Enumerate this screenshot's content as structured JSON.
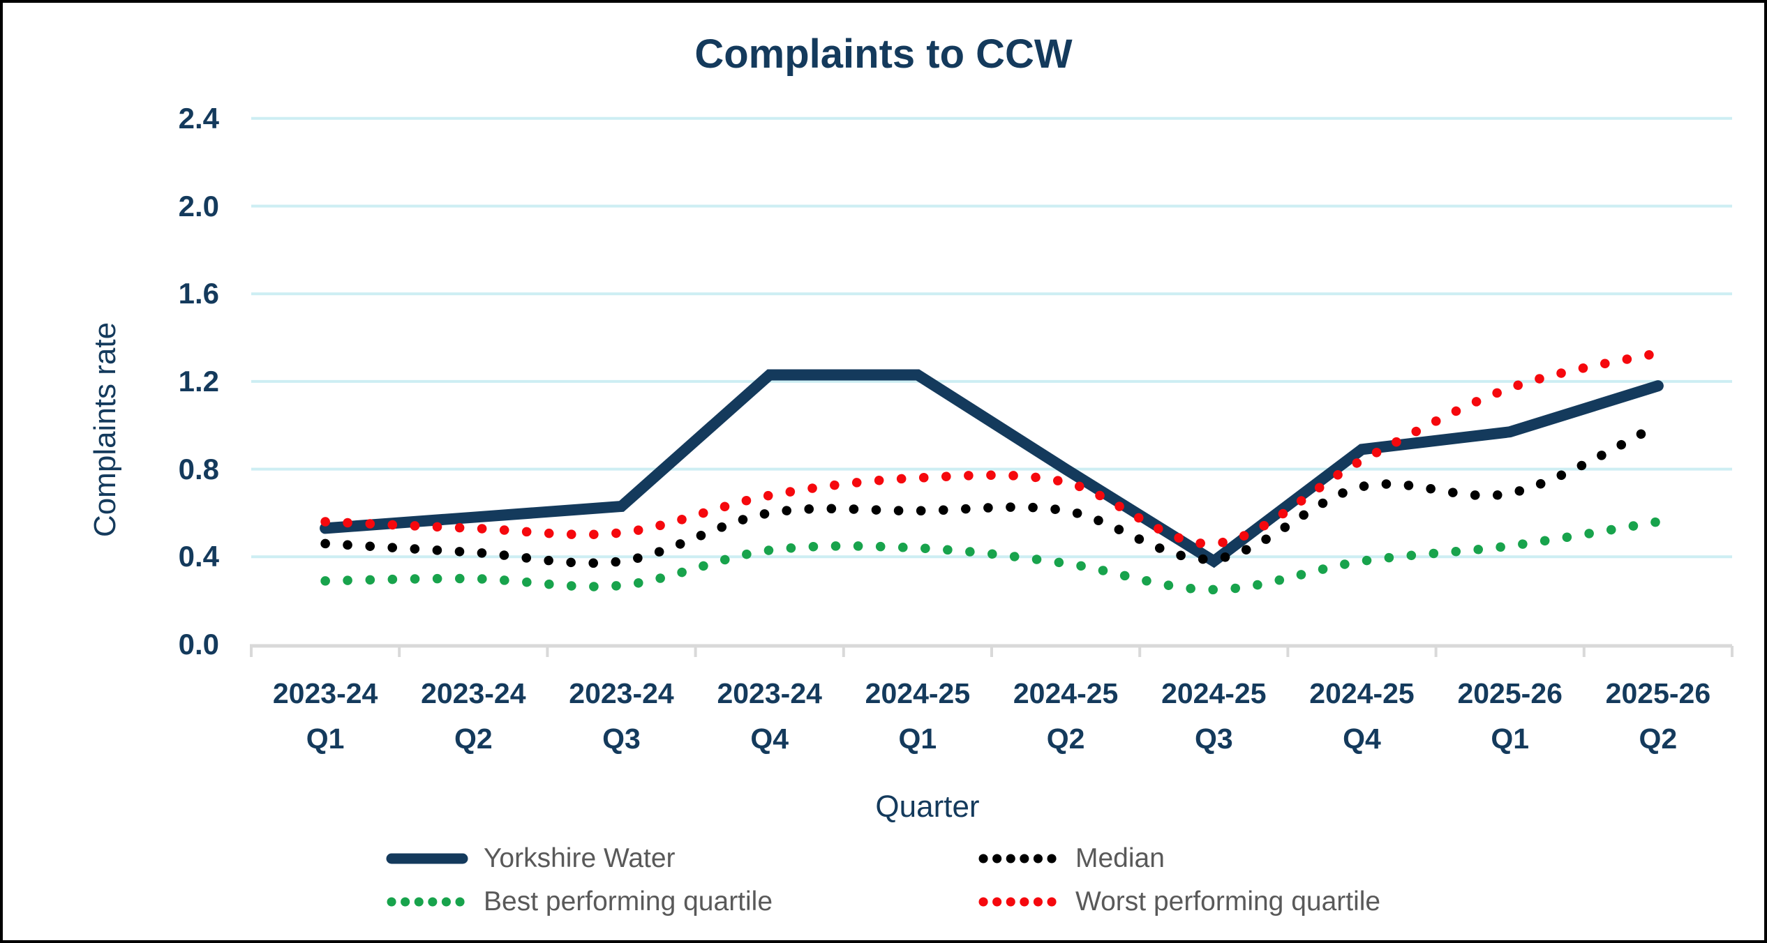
{
  "chart_data": {
    "type": "line",
    "title": "Complaints to CCW",
    "xlabel": "Quarter",
    "ylabel": "Complaints rate",
    "ylim": [
      0,
      2.4
    ],
    "ytick_labels": [
      "0.0",
      "0.4",
      "0.8",
      "1.2",
      "1.6",
      "2.0",
      "2.4"
    ],
    "grid": true,
    "legend_position": "bottom",
    "categories": [
      {
        "year": "2023-24",
        "quarter": "Q1"
      },
      {
        "year": "2023-24",
        "quarter": "Q2"
      },
      {
        "year": "2023-24",
        "quarter": "Q3"
      },
      {
        "year": "2023-24",
        "quarter": "Q4"
      },
      {
        "year": "2024-25",
        "quarter": "Q1"
      },
      {
        "year": "2024-25",
        "quarter": "Q2"
      },
      {
        "year": "2024-25",
        "quarter": "Q3"
      },
      {
        "year": "2024-25",
        "quarter": "Q4"
      },
      {
        "year": "2025-26",
        "quarter": "Q1"
      },
      {
        "year": "2025-26",
        "quarter": "Q2"
      }
    ],
    "series": [
      {
        "name": "Yorkshire Water",
        "style": "solid",
        "color": "#143a5c",
        "values": [
          0.53,
          0.58,
          0.63,
          1.23,
          1.23,
          0.8,
          0.38,
          0.89,
          0.97,
          1.18
        ]
      },
      {
        "name": "Median",
        "style": "dotted",
        "color": "#000000",
        "values": [
          0.46,
          0.42,
          0.38,
          0.6,
          0.61,
          0.61,
          0.39,
          0.72,
          0.69,
          1.0
        ]
      },
      {
        "name": "Best performing quartile",
        "style": "dotted",
        "color": "#18a34c",
        "values": [
          0.29,
          0.3,
          0.27,
          0.43,
          0.44,
          0.37,
          0.25,
          0.38,
          0.45,
          0.56
        ]
      },
      {
        "name": "Worst performing quartile",
        "style": "dotted",
        "color": "#f5080d",
        "values": [
          0.56,
          0.53,
          0.51,
          0.68,
          0.76,
          0.74,
          0.46,
          0.84,
          1.17,
          1.33
        ]
      }
    ]
  },
  "theme": {
    "text_navy": "#143a5c",
    "grid_color": "#cdeef3",
    "axis_color": "#d9d9d9",
    "legend_text_color": "#595959",
    "background": "#ffffff",
    "border_color": "#000000"
  }
}
